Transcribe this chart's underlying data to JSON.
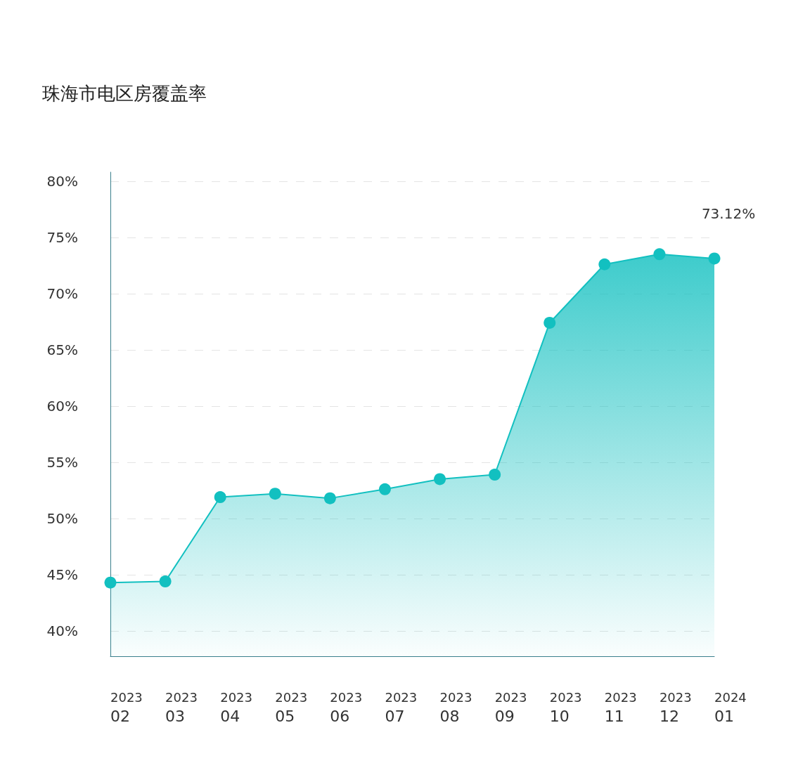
{
  "chart_data": {
    "type": "area",
    "title": "珠海市电区房覆盖率",
    "categories": [
      "2023\n02",
      "2023\n03",
      "2023\n04",
      "2023\n05",
      "2023\n06",
      "2023\n07",
      "2023\n08",
      "2023\n09",
      "2023\n10",
      "2023\n11",
      "2023\n12",
      "2024\n01"
    ],
    "series": [
      {
        "color": "#12c0c0",
        "values": [
          44.3,
          44.4,
          51.9,
          52.2,
          51.8,
          52.6,
          53.5,
          53.9,
          67.4,
          72.6,
          73.5,
          73.12
        ],
        "value_labels": [
          null,
          null,
          null,
          null,
          null,
          null,
          null,
          null,
          null,
          null,
          null,
          "73.12%"
        ]
      }
    ],
    "ylim": [
      37.75,
      80.8
    ],
    "yticks": [
      {
        "value": 40,
        "label": "40%"
      },
      {
        "value": 45,
        "label": "45%"
      },
      {
        "value": 50,
        "label": "50%"
      },
      {
        "value": 55,
        "label": "55%"
      },
      {
        "value": 60,
        "label": "60%"
      },
      {
        "value": 65,
        "label": "65%"
      },
      {
        "value": 70,
        "label": "70%"
      },
      {
        "value": 75,
        "label": "75%"
      },
      {
        "value": 80,
        "label": "80%"
      }
    ],
    "grid": "y",
    "marker": "circle",
    "line_style": "solid"
  }
}
